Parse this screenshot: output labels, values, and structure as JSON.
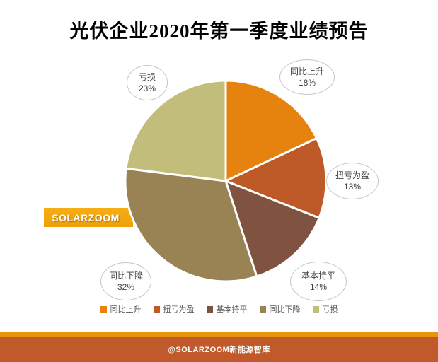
{
  "title": "光伏企业2020年第一季度业绩预告",
  "watermark": "SOLARZOOM",
  "footer": {
    "credit": "@SOLARZOOM新能源智库",
    "stripe_color": "#E8930C",
    "bar_color": "#C05A2B"
  },
  "colors": {
    "title_text": "#000000",
    "ribbon": "#F2A50F",
    "callout_border": "#C6C6C6",
    "callout_text": "#404040",
    "legend_text": "#595959",
    "slice_border": "#FFFFFF"
  },
  "chart_data": {
    "type": "pie",
    "title": "光伏企业2020年第一季度业绩预告",
    "categories": [
      "同比上升",
      "扭亏为盈",
      "基本持平",
      "同比下降",
      "亏损"
    ],
    "values": [
      18,
      13,
      14,
      32,
      23
    ],
    "unit": "%",
    "colors": [
      "#E6820E",
      "#BD5A28",
      "#7F5340",
      "#998355",
      "#C2BD7B"
    ],
    "start_angle_deg": 0,
    "direction": "clockwise",
    "legend_position": "bottom",
    "data_labels": [
      "同比上升 18%",
      "扭亏为盈 13%",
      "基本持平 14%",
      "同比下降 32%",
      "亏损 23%"
    ]
  }
}
